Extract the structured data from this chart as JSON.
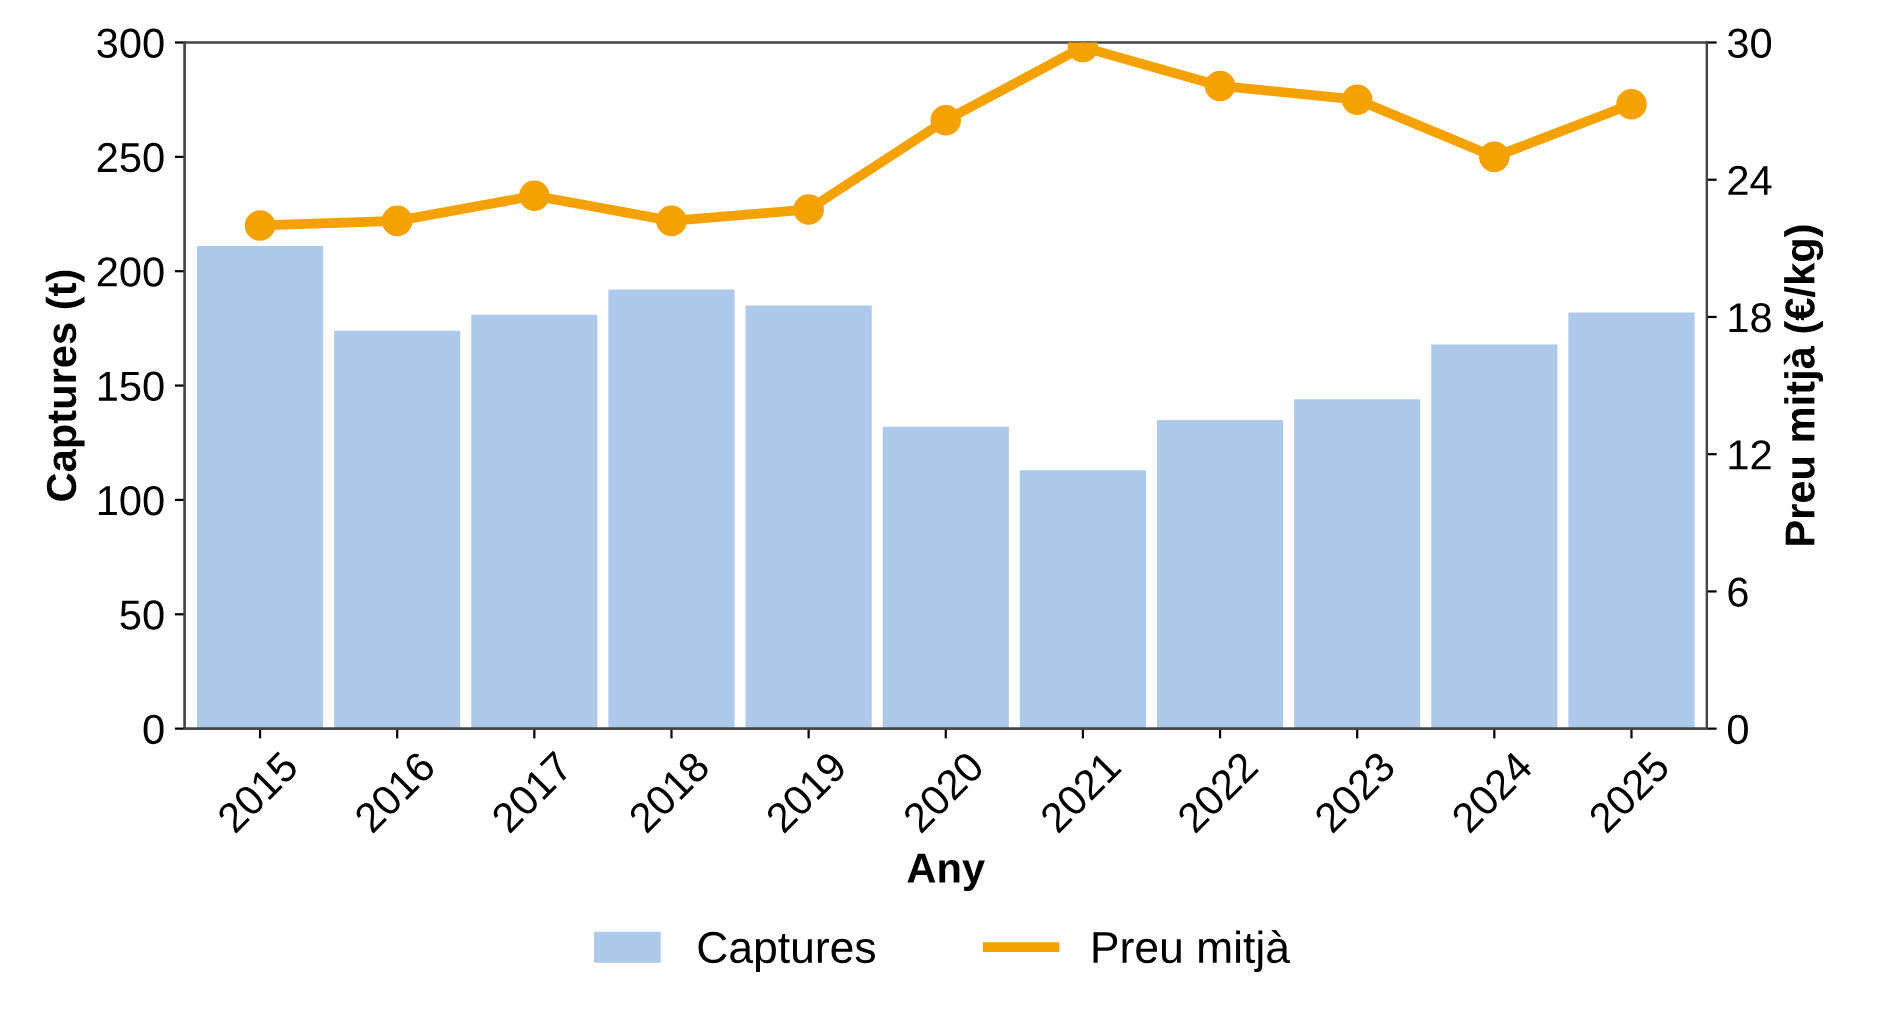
{
  "chart_data": {
    "type": "bar",
    "xlabel": "Any",
    "ylabel": "Captures (t)",
    "y2label": "Preu mitjà (€/kg)",
    "categories": [
      "2015",
      "2016",
      "2017",
      "2018",
      "2019",
      "2020",
      "2021",
      "2022",
      "2023",
      "2024",
      "2025"
    ],
    "series": [
      {
        "name": "Captures",
        "color": "#aec9ea",
        "values": [
          211,
          174,
          181,
          192,
          185,
          132,
          113,
          135,
          144,
          168,
          182
        ]
      },
      {
        "name": "Preu mitjà",
        "type": "line",
        "axis": "y2",
        "color": "#f5a100",
        "marker": "circle",
        "line_style": "solid",
        "values": [
          22.0,
          22.2,
          23.3,
          22.2,
          22.7,
          26.6,
          29.8,
          28.1,
          27.5,
          25.0,
          27.3
        ]
      }
    ],
    "ylim": [
      0,
      300
    ],
    "yticks": [
      0,
      50,
      100,
      150,
      200,
      250,
      300
    ],
    "y2lim": [
      0,
      30
    ],
    "y2ticks": [
      0,
      6,
      12,
      18,
      24,
      30
    ],
    "grid": false,
    "legend": "bottom"
  }
}
